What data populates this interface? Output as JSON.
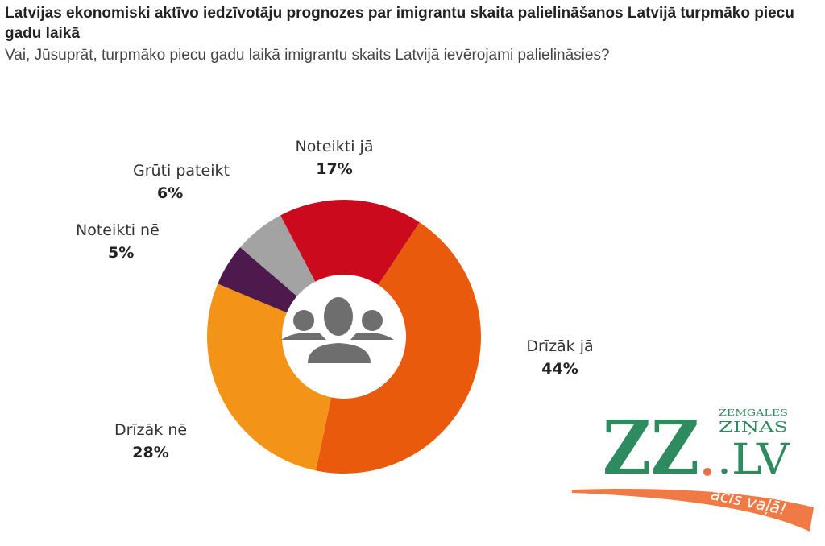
{
  "title": "Latvijas ekonomiski aktīvo iedzīvotāju prognozes par imigrantu skaita palielināšanos Latvijā turpmāko piecu gadu laikā",
  "subtitle": "Vai, Jūsuprāt, turpmāko piecu gadu laikā imigrantu skaits Latvijā ievērojami palielināsies?",
  "chart_data": {
    "type": "pie",
    "donut": true,
    "center_icon": "people-group-icon",
    "slices": [
      {
        "label": "Noteikti jā",
        "value": 17,
        "value_label": "17%",
        "color": "#cc0a1e"
      },
      {
        "label": "Drīzāk jā",
        "value": 44,
        "value_label": "44%",
        "color": "#ea5a0c"
      },
      {
        "label": "Drīzāk nē",
        "value": 28,
        "value_label": "28%",
        "color": "#f39318"
      },
      {
        "label": "Noteikti nē",
        "value": 5,
        "value_label": "5%",
        "color": "#4e1a4e"
      },
      {
        "label": "Grūti pateikt",
        "value": 6,
        "value_label": "6%",
        "color": "#a3a3a3"
      }
    ]
  },
  "logo": {
    "main": "ZZ",
    "dot_suffix": ".LV",
    "top_line1": "ZEMGALES",
    "top_line2": "ZIŅAS",
    "slogan": "acis vaļā!",
    "green": "#2e8a5f",
    "orange": "#f07a45"
  }
}
